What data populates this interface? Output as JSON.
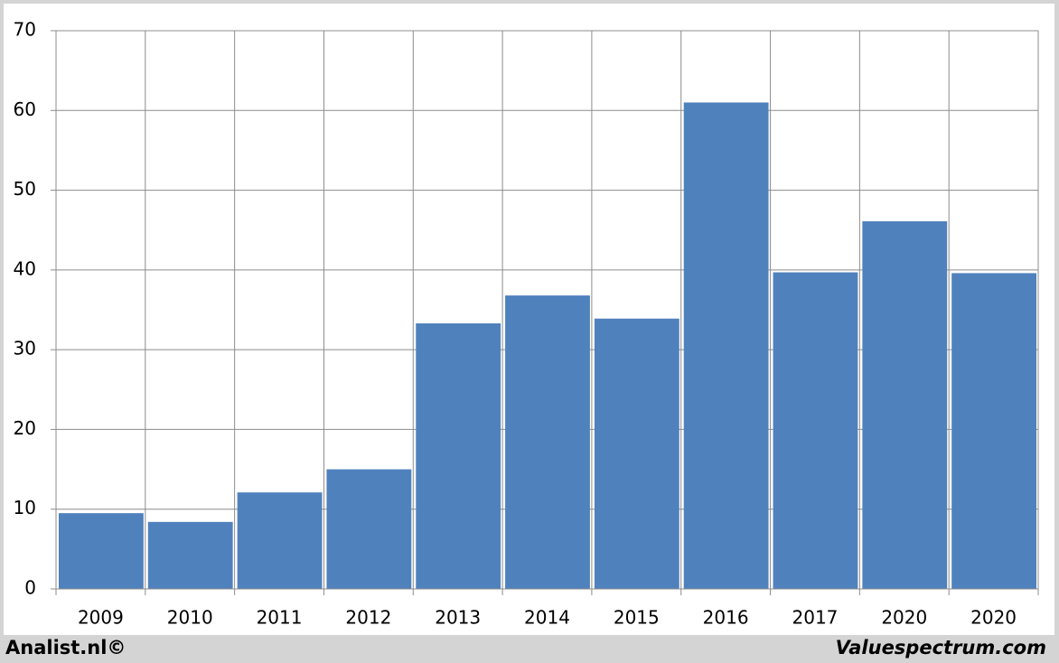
{
  "chart_data": {
    "type": "bar",
    "categories": [
      "2009",
      "2010",
      "2011",
      "2012",
      "2013",
      "2014",
      "2015",
      "2016",
      "2017",
      "2020",
      "2020"
    ],
    "values": [
      9.5,
      8.4,
      12.1,
      15.0,
      33.3,
      36.8,
      33.9,
      61.0,
      39.7,
      46.1,
      39.6
    ],
    "color": "#4f81bd",
    "ylim": [
      0,
      70
    ],
    "yticks": [
      0,
      10,
      20,
      30,
      40,
      50,
      60,
      70
    ],
    "grid": true,
    "footer_left": "Analist.nl©",
    "footer_right": "Valuespectrum.com"
  }
}
